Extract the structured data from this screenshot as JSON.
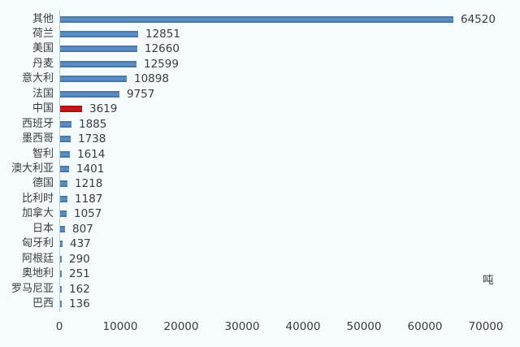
{
  "chart_data": {
    "type": "bar",
    "orientation": "horizontal",
    "title": "",
    "xlabel": "",
    "ylabel": "",
    "unit_label": "吨",
    "categories": [
      "其他",
      "荷兰",
      "美国",
      "丹麦",
      "意大利",
      "法国",
      "中国",
      "西班牙",
      "墨西哥",
      "智利",
      "澳大利亚",
      "德国",
      "比利时",
      "加拿大",
      "日本",
      "匈牙利",
      "阿根廷",
      "奥地利",
      "罗马尼亚",
      "巴西"
    ],
    "values": [
      64520,
      12851,
      12660,
      12599,
      10898,
      9757,
      3619,
      1885,
      1738,
      1614,
      1401,
      1218,
      1187,
      1057,
      807,
      437,
      290,
      251,
      162,
      136
    ],
    "value_labels": [
      "64520",
      "12851",
      "12660",
      "12599",
      "10898",
      "9757",
      "3619",
      "1885",
      "1738",
      "1614",
      "1401",
      "1218",
      "1187",
      "1057",
      "807",
      "437",
      "290",
      "251",
      "162",
      "136"
    ],
    "highlight_category": "中国",
    "xlim": [
      0,
      70000
    ],
    "x_ticks": [
      0,
      10000,
      20000,
      30000,
      40000,
      50000,
      60000,
      70000
    ],
    "x_tick_labels": [
      "0",
      "10000",
      "20000",
      "30000",
      "40000",
      "50000",
      "60000",
      "70000"
    ],
    "grid": false,
    "legend": false
  },
  "colors": {
    "background": "#f4fbfc",
    "bar": "#4f81bd",
    "highlight_bar": "#c00b12",
    "text": "#3b3b3b",
    "axis_line": "#bfccd2"
  }
}
